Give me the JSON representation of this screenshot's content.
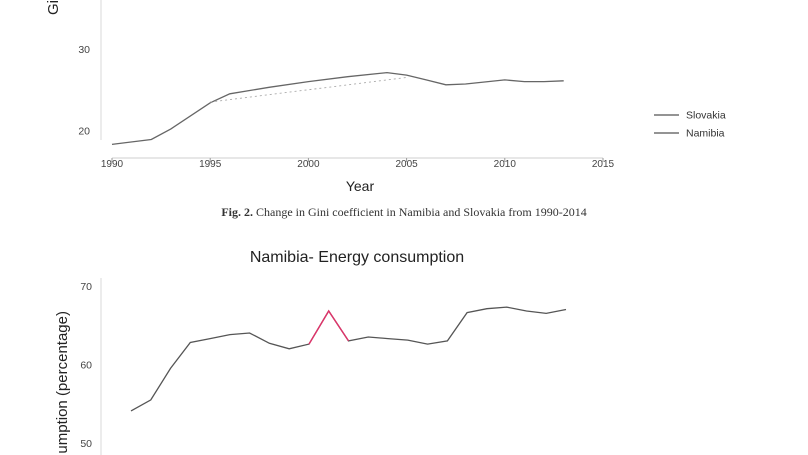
{
  "chart_data": [
    {
      "type": "line",
      "title": "",
      "xlabel": "Year",
      "ylabel": "Gi",
      "ylim": [
        17,
        36
      ],
      "xlim": [
        1990,
        2015
      ],
      "x_ticks": [
        "1990",
        "1995",
        "2000",
        "2005",
        "2010",
        "2015"
      ],
      "y_ticks": [
        "20",
        "30"
      ],
      "legend_position": "right",
      "series": [
        {
          "name": "Slovakia",
          "color": "#666666",
          "x": [
            1990,
            1992,
            1993,
            1995,
            1996,
            1998,
            2000,
            2002,
            2004,
            2005,
            2006,
            2007,
            2008,
            2010,
            2011,
            2012,
            2013
          ],
          "y": [
            18.3,
            18.9,
            20.2,
            23.4,
            24.5,
            25.3,
            26.0,
            26.6,
            27.1,
            26.8,
            26.2,
            25.6,
            25.7,
            26.2,
            26.0,
            26.0,
            26.1
          ]
        },
        {
          "name": "Namibia",
          "color": "#aaaaaa",
          "x": [
            1995,
            2005
          ],
          "y": [
            23.5,
            26.5
          ]
        }
      ]
    },
    {
      "type": "line",
      "title": "Namibia- Energy consumption",
      "xlabel": "",
      "ylabel": "umption (percentage)",
      "ylim": [
        49,
        71
      ],
      "y_ticks": [
        "50",
        "60",
        "70"
      ],
      "grid": false,
      "series": [
        {
          "color": "#555555",
          "highlight_color": "#e0336a",
          "x": [
            1990,
            1991,
            1992,
            1993,
            1994,
            1995,
            1996,
            1997,
            1998,
            1999,
            2000,
            2001,
            2002,
            2003,
            2004,
            2005,
            2006,
            2007,
            2008,
            2009,
            2010,
            2011,
            2012
          ],
          "y": [
            54.1,
            55.5,
            59.5,
            62.8,
            63.3,
            63.8,
            64.0,
            62.7,
            62.0,
            62.6,
            66.8,
            63.0,
            63.5,
            63.3,
            63.1,
            62.6,
            63.0,
            66.6,
            67.1,
            67.3,
            66.8,
            66.5,
            67.0
          ]
        }
      ]
    }
  ],
  "caption": {
    "label": "Fig. 2.",
    "text": "Change in Gini coefficient in Namibia and Slovakia from 1990-2014"
  }
}
